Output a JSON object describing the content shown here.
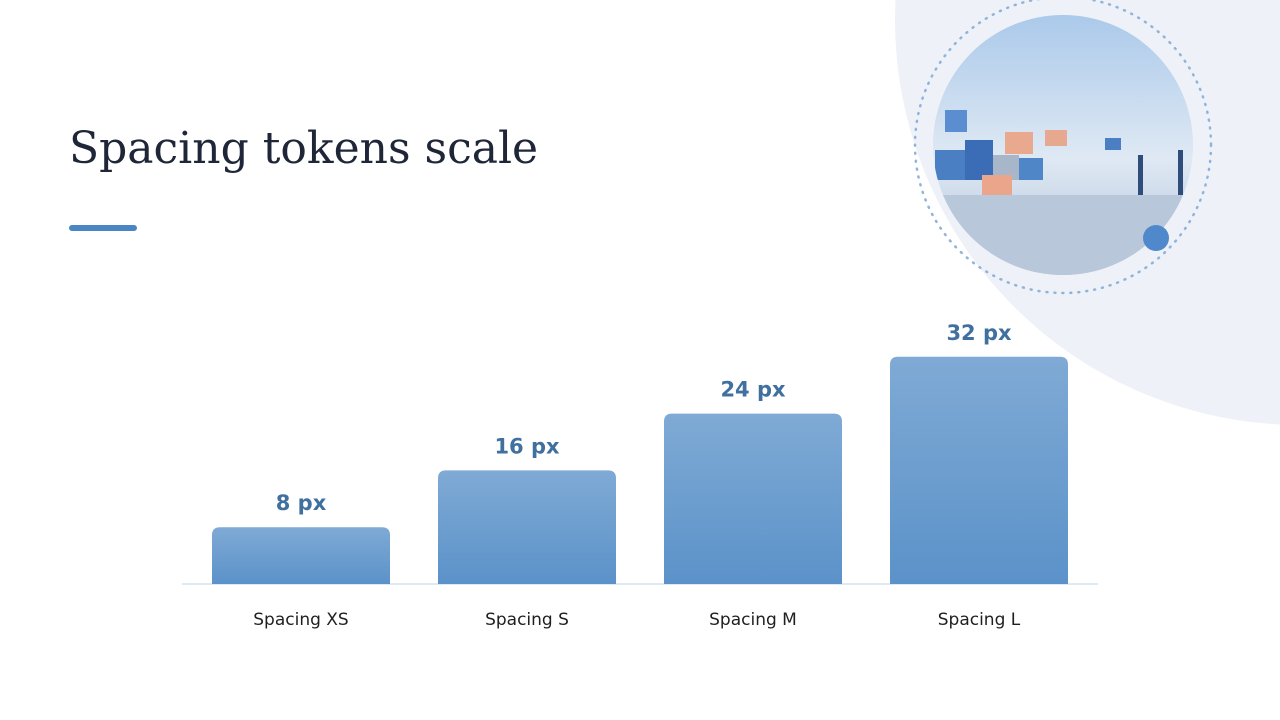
{
  "chart_data": {
    "type": "bar",
    "title": "Spacing tokens scale",
    "categories": [
      "Spacing XS",
      "Spacing S",
      "Spacing M",
      "Spacing L"
    ],
    "values": [
      8,
      16,
      24,
      32
    ],
    "value_labels": [
      "8 px",
      "16 px",
      "24 px",
      "32 px"
    ],
    "color": "#5b92c9"
  }
}
